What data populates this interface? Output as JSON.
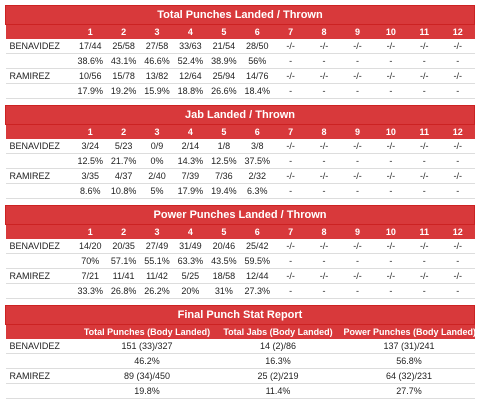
{
  "tables": [
    {
      "title": "Total Punches Landed / Thrown",
      "columns": [
        "1",
        "2",
        "3",
        "4",
        "5",
        "6",
        "7",
        "8",
        "9",
        "10",
        "11",
        "12"
      ],
      "fighters": [
        {
          "name": "BENAVIDEZ",
          "landed": [
            "17/44",
            "25/58",
            "27/58",
            "33/63",
            "21/54",
            "28/50",
            "-/-",
            "-/-",
            "-/-",
            "-/-",
            "-/-",
            "-/-"
          ],
          "pct": [
            "38.6%",
            "43.1%",
            "46.6%",
            "52.4%",
            "38.9%",
            "56%",
            "-",
            "-",
            "-",
            "-",
            "-",
            "-"
          ]
        },
        {
          "name": "RAMIREZ",
          "landed": [
            "10/56",
            "15/78",
            "13/82",
            "12/64",
            "25/94",
            "14/76",
            "-/-",
            "-/-",
            "-/-",
            "-/-",
            "-/-",
            "-/-"
          ],
          "pct": [
            "17.9%",
            "19.2%",
            "15.9%",
            "18.8%",
            "26.6%",
            "18.4%",
            "-",
            "-",
            "-",
            "-",
            "-",
            "-"
          ]
        }
      ]
    },
    {
      "title": "Jab Landed / Thrown",
      "columns": [
        "1",
        "2",
        "3",
        "4",
        "5",
        "6",
        "7",
        "8",
        "9",
        "10",
        "11",
        "12"
      ],
      "fighters": [
        {
          "name": "BENAVIDEZ",
          "landed": [
            "3/24",
            "5/23",
            "0/9",
            "2/14",
            "1/8",
            "3/8",
            "-/-",
            "-/-",
            "-/-",
            "-/-",
            "-/-",
            "-/-"
          ],
          "pct": [
            "12.5%",
            "21.7%",
            "0%",
            "14.3%",
            "12.5%",
            "37.5%",
            "-",
            "-",
            "-",
            "-",
            "-",
            "-"
          ]
        },
        {
          "name": "RAMIREZ",
          "landed": [
            "3/35",
            "4/37",
            "2/40",
            "7/39",
            "7/36",
            "2/32",
            "-/-",
            "-/-",
            "-/-",
            "-/-",
            "-/-",
            "-/-"
          ],
          "pct": [
            "8.6%",
            "10.8%",
            "5%",
            "17.9%",
            "19.4%",
            "6.3%",
            "-",
            "-",
            "-",
            "-",
            "-",
            "-"
          ]
        }
      ]
    },
    {
      "title": "Power Punches Landed / Thrown",
      "columns": [
        "1",
        "2",
        "3",
        "4",
        "5",
        "6",
        "7",
        "8",
        "9",
        "10",
        "11",
        "12"
      ],
      "fighters": [
        {
          "name": "BENAVIDEZ",
          "landed": [
            "14/20",
            "20/35",
            "27/49",
            "31/49",
            "20/46",
            "25/42",
            "-/-",
            "-/-",
            "-/-",
            "-/-",
            "-/-",
            "-/-"
          ],
          "pct": [
            "70%",
            "57.1%",
            "55.1%",
            "63.3%",
            "43.5%",
            "59.5%",
            "-",
            "-",
            "-",
            "-",
            "-",
            "-"
          ]
        },
        {
          "name": "RAMIREZ",
          "landed": [
            "7/21",
            "11/41",
            "11/42",
            "5/25",
            "18/58",
            "12/44",
            "-/-",
            "-/-",
            "-/-",
            "-/-",
            "-/-",
            "-/-"
          ],
          "pct": [
            "33.3%",
            "26.8%",
            "26.2%",
            "20%",
            "31%",
            "27.3%",
            "-",
            "-",
            "-",
            "-",
            "-",
            "-"
          ]
        }
      ]
    },
    {
      "title": "Final Punch Stat Report",
      "columns": [
        "Total Punches (Body Landed)",
        "Total Jabs (Body Landed)",
        "Power Punches (Body Landed)"
      ],
      "fighters": [
        {
          "name": "BENAVIDEZ",
          "landed": [
            "151 (33)/327",
            "14 (2)/86",
            "137 (31)/241"
          ],
          "pct": [
            "46.2%",
            "16.3%",
            "56.8%"
          ]
        },
        {
          "name": "RAMIREZ",
          "landed": [
            "89 (34)/450",
            "25 (2)/219",
            "64 (32)/231"
          ],
          "pct": [
            "19.8%",
            "11.4%",
            "27.7%"
          ]
        }
      ]
    }
  ]
}
